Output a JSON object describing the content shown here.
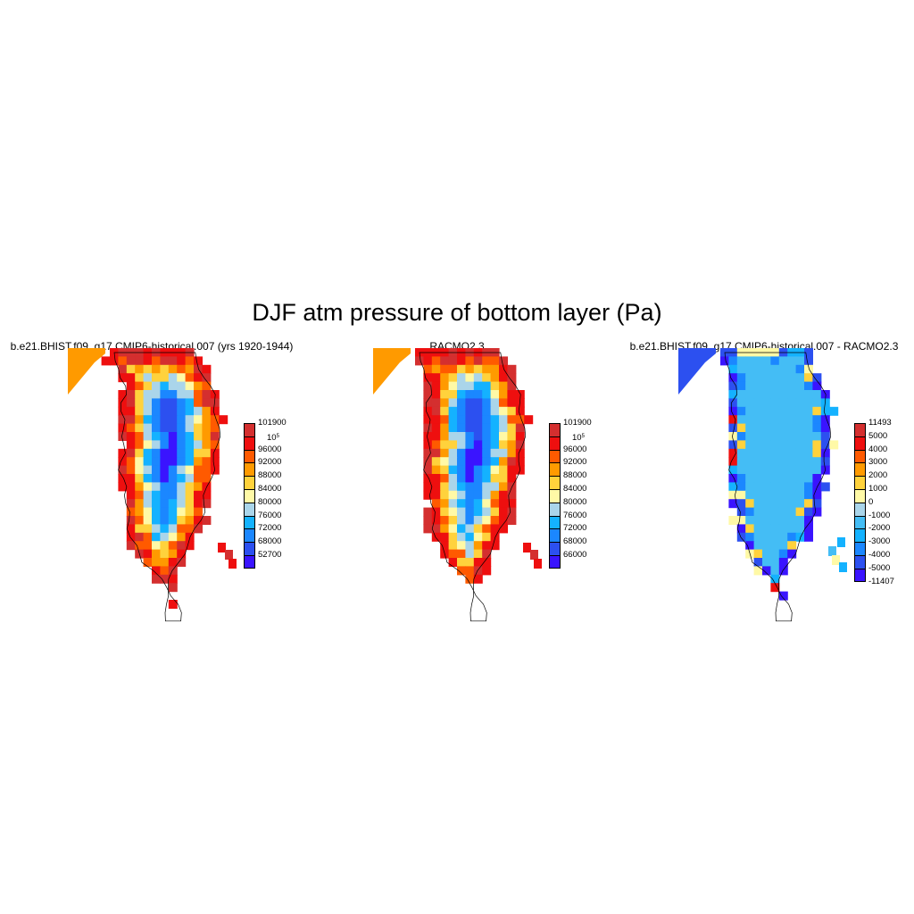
{
  "title": "DJF atm pressure of bottom layer (Pa)",
  "panels": [
    {
      "id": "model",
      "title": "b.e21.BHIST.f09_g17.CMIP6-historical.007 (yrs 1920-1944)",
      "levels": [
        "101900",
        "10^5",
        "96000",
        "92000",
        "88000",
        "84000",
        "80000",
        "76000",
        "72000",
        "68000",
        "52700"
      ],
      "colors": [
        "#d42f2f",
        "#ee0f0f",
        "#ff5a00",
        "#ff9a00",
        "#ffd23c",
        "#fff9a6",
        "#aad5ea",
        "#14b2ff",
        "#1b87ff",
        "#2c50f0",
        "#3a14ff"
      ]
    },
    {
      "id": "racmo",
      "title": "RACMO2.3",
      "levels": [
        "101900",
        "10^5",
        "96000",
        "92000",
        "88000",
        "84000",
        "80000",
        "76000",
        "72000",
        "68000",
        "66000"
      ],
      "colors": [
        "#d42f2f",
        "#ee0f0f",
        "#ff5a00",
        "#ff9a00",
        "#ffd23c",
        "#fff9a6",
        "#aad5ea",
        "#14b2ff",
        "#1b87ff",
        "#2c50f0",
        "#3a14ff"
      ]
    },
    {
      "id": "difference",
      "title": "b.e21.BHIST.f09_g17.CMIP6-historical.007 - RACMO2.3",
      "levels": [
        "11493",
        "5000",
        "4000",
        "3000",
        "2000",
        "1000",
        "0",
        "-1000",
        "-2000",
        "-3000",
        "-4000",
        "-5000",
        "-11407"
      ],
      "colors": [
        "#d42f2f",
        "#ee0f0f",
        "#ff5a00",
        "#ff9a00",
        "#ffd23c",
        "#fff9a6",
        "#aad5ea",
        "#44bdf5",
        "#14b2ff",
        "#1b87ff",
        "#2c50f0",
        "#3a14ff"
      ]
    }
  ]
}
